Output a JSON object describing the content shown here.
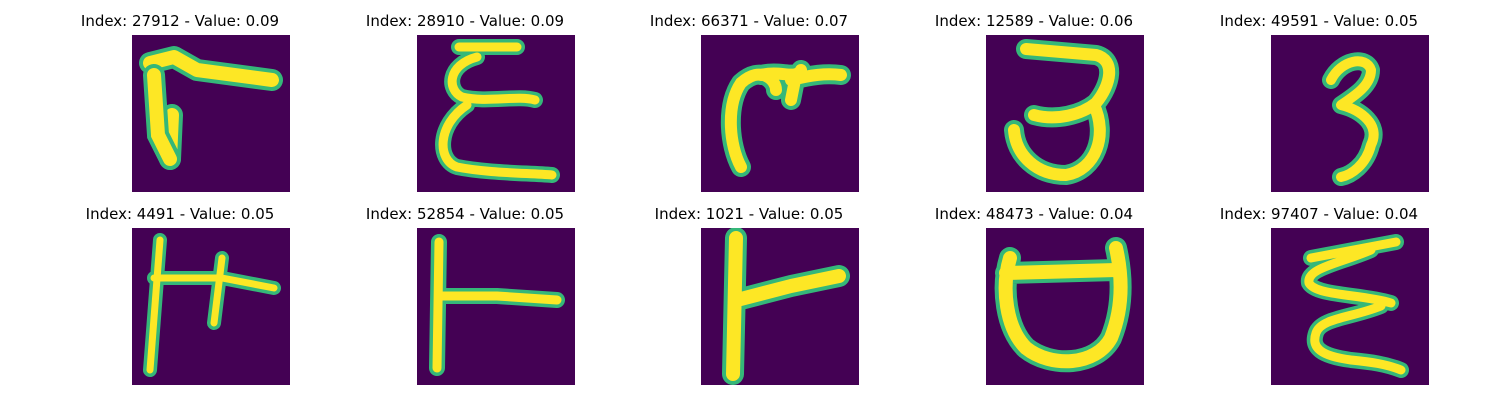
{
  "figure": {
    "colors": {
      "background": "#440154",
      "stroke_core": "#fde725",
      "stroke_edge": "#35b779"
    },
    "panels": [
      {
        "index": 27912,
        "value": 0.09,
        "title": "Index: 27912 - Value: 0.09"
      },
      {
        "index": 28910,
        "value": 0.09,
        "title": "Index: 28910 - Value: 0.09"
      },
      {
        "index": 66371,
        "value": 0.07,
        "title": "Index: 66371 - Value: 0.07"
      },
      {
        "index": 12589,
        "value": 0.06,
        "title": "Index: 12589 - Value: 0.06"
      },
      {
        "index": 49591,
        "value": 0.05,
        "title": "Index: 49591 - Value: 0.05"
      },
      {
        "index": 4491,
        "value": 0.05,
        "title": "Index: 4491 - Value: 0.05"
      },
      {
        "index": 52854,
        "value": 0.05,
        "title": "Index: 52854 - Value: 0.05"
      },
      {
        "index": 1021,
        "value": 0.05,
        "title": "Index: 1021 - Value: 0.05"
      },
      {
        "index": 48473,
        "value": 0.04,
        "title": "Index: 48473 - Value: 0.04"
      },
      {
        "index": 97407,
        "value": 0.04,
        "title": "Index: 97407 - Value: 0.04"
      }
    ]
  }
}
